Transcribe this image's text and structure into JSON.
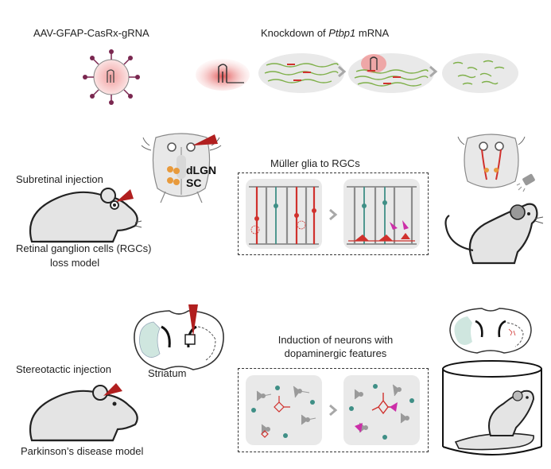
{
  "header": {
    "vector_label": "AAV-GFAP-CasRx-gRNA",
    "knockdown_prefix": "Knockdown of ",
    "knockdown_gene": "Ptbp1",
    "knockdown_suffix": " mRNA"
  },
  "retina_section": {
    "injection_label": "Subretinal injection",
    "model_label_line1": "Retinal ganglion cells (RGCs)",
    "model_label_line2": "loss model",
    "brain_label_dlgn": "dLGN",
    "brain_label_sc": "SC",
    "conversion_title": "Müller glia to RGCs"
  },
  "parkinson_section": {
    "injection_label": "Stereotactic injection",
    "region_label": "Striatum",
    "model_label": "Parkinson’s disease model",
    "conversion_title_line1": "Induction of neurons with",
    "conversion_title_line2": "dopaminergic features"
  },
  "colors": {
    "red": "#d0312d",
    "pink_glow": "#f4a5a5",
    "teal": "#3f8f86",
    "mint": "#cfe6df",
    "gray_panel": "#e9e9e9",
    "mrna_green": "#7fb04a",
    "arrow_gray": "#a8a8a8",
    "magenta": "#cc2ea8",
    "orange": "#e89a3c"
  }
}
